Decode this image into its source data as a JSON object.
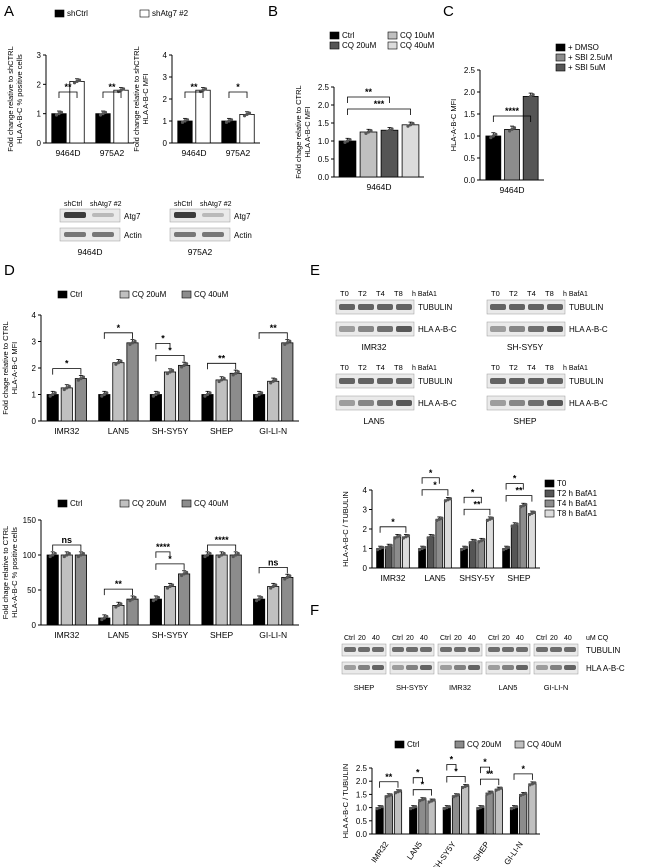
{
  "colors": {
    "black": "#000000",
    "dark": "#555555",
    "mid": "#8c8c8c",
    "light": "#c0c0c0",
    "lighter": "#dcdcdc",
    "white": "#ffffff",
    "band": "#2a2a2a"
  },
  "panel_letters": {
    "A": "A",
    "B": "B",
    "C": "C",
    "D": "D",
    "E": "E",
    "F": "F"
  },
  "chart_data": [
    {
      "id": "A1",
      "type": "bar",
      "ylabel_lines": [
        "Fold change relative to shCTRL",
        "HLA A-B-C % positive cells"
      ],
      "legend": [
        "shCtrl",
        "shAtg7 #2"
      ],
      "categories": [
        "9464D",
        "975A2"
      ],
      "ylim": [
        0,
        3
      ],
      "yticks": [
        "0",
        "1",
        "2",
        "3"
      ],
      "series": [
        {
          "name": "shCtrl",
          "values": [
            1.0,
            1.0
          ]
        },
        {
          "name": "shAtg7 #2",
          "values": [
            2.1,
            1.8
          ]
        }
      ],
      "significance": [
        {
          "label": "**",
          "cat": 0
        },
        {
          "label": "**",
          "cat": 1
        }
      ]
    },
    {
      "id": "A2",
      "type": "bar",
      "ylabel_lines": [
        "Fold change relative to shCTRL",
        "HLA A-B-C MFI"
      ],
      "categories": [
        "9464D",
        "975A2"
      ],
      "ylim": [
        0,
        4
      ],
      "yticks": [
        "0",
        "1",
        "2",
        "3",
        "4"
      ],
      "series": [
        {
          "name": "shCtrl",
          "values": [
            1.0,
            1.0
          ]
        },
        {
          "name": "shAtg7 #2",
          "values": [
            2.4,
            1.3
          ]
        }
      ],
      "significance": [
        {
          "label": "**",
          "cat": 0
        },
        {
          "label": "*",
          "cat": 1
        }
      ]
    },
    {
      "id": "B",
      "type": "bar",
      "ylabel_lines": [
        "Fold chage relative to CTRL",
        "HLA A-B-C MFI"
      ],
      "legend": [
        "Ctrl",
        "CQ 10uM",
        "CQ 20uM",
        "CQ 40uM"
      ],
      "categories": [
        "9464D"
      ],
      "ylim": [
        0,
        2.5
      ],
      "yticks": [
        "0.0",
        "0.5",
        "1.0",
        "1.5",
        "2.0",
        "2.5"
      ],
      "series": [
        {
          "name": "Ctrl",
          "values": [
            1.0
          ]
        },
        {
          "name": "CQ 10uM",
          "values": [
            1.25
          ]
        },
        {
          "name": "CQ 20uM",
          "values": [
            1.3
          ]
        },
        {
          "name": "CQ 40uM",
          "values": [
            1.45
          ]
        }
      ],
      "significance": [
        "**",
        "***"
      ]
    },
    {
      "id": "C",
      "type": "bar",
      "ylabel_lines": [
        "HLA-A-B-C MFI"
      ],
      "legend": [
        "+ DMSO",
        "+ SBI 2.5uM",
        "+ SBI 5uM"
      ],
      "categories": [
        "9464D"
      ],
      "ylim": [
        0,
        2.5
      ],
      "yticks": [
        "0.0",
        "0.5",
        "1.0",
        "1.5",
        "2.0",
        "2.5"
      ],
      "series": [
        {
          "name": "+ DMSO",
          "values": [
            1.0
          ]
        },
        {
          "name": "+ SBI 2.5uM",
          "values": [
            1.15
          ]
        },
        {
          "name": "+ SBI 5uM",
          "values": [
            1.9
          ]
        }
      ],
      "significance": [
        "****"
      ]
    },
    {
      "id": "D1",
      "type": "bar",
      "ylabel_lines": [
        "Fold chage relative to CTRL",
        "HLA-A-B-C MFI"
      ],
      "legend": [
        "Ctrl",
        "CQ 20uM",
        "CQ 40uM"
      ],
      "categories": [
        "IMR32",
        "LAN5",
        "SH-SY5Y",
        "SHEP",
        "GI-LI-N"
      ],
      "ylim": [
        0,
        4
      ],
      "yticks": [
        "0",
        "1",
        "2",
        "3",
        "4"
      ],
      "series": [
        {
          "name": "Ctrl",
          "values": [
            1,
            1,
            1,
            1,
            1
          ]
        },
        {
          "name": "CQ 20uM",
          "values": [
            1.25,
            2.2,
            1.85,
            1.55,
            1.5
          ]
        },
        {
          "name": "CQ 40uM",
          "values": [
            1.6,
            2.95,
            2.1,
            1.8,
            2.95
          ]
        }
      ],
      "significance": [
        "*",
        "*",
        "*",
        "**",
        "**",
        "*"
      ]
    },
    {
      "id": "D2",
      "type": "bar",
      "ylabel_lines": [
        "Fold chage relative to CTRL",
        "HLA-A-B-C % positive cells"
      ],
      "legend": [
        "Ctrl",
        "CQ 20uM",
        "CQ 40uM"
      ],
      "categories": [
        "IMR32",
        "LAN5",
        "SH-SY5Y",
        "SHEP",
        "GI-LI-N"
      ],
      "ylim": [
        0,
        150
      ],
      "yticks": [
        "0",
        "50",
        "100",
        "150"
      ],
      "series": [
        {
          "name": "Ctrl",
          "values": [
            100,
            10,
            37,
            100,
            37
          ]
        },
        {
          "name": "CQ 20uM",
          "values": [
            100,
            28,
            55,
            100,
            55
          ]
        },
        {
          "name": "CQ 40uM",
          "values": [
            100,
            37,
            73,
            100,
            68
          ]
        }
      ],
      "significance": [
        "ns",
        "**",
        "*",
        "****",
        "ns",
        "****"
      ]
    },
    {
      "id": "E",
      "type": "bar",
      "ylabel_lines": [
        "HLA-A-B-C / TUBULIN"
      ],
      "legend": [
        "T0",
        "T2 h BafA1",
        "T4 h BafA1",
        "T8 h BafA1"
      ],
      "categories": [
        "IMR32",
        "LAN5",
        "SHSY-5Y",
        "SHEP"
      ],
      "ylim": [
        0,
        4
      ],
      "yticks": [
        "0",
        "1",
        "2",
        "3",
        "4"
      ],
      "series": [
        {
          "name": "T0",
          "values": [
            1.0,
            1.0,
            1.0,
            1.0
          ]
        },
        {
          "name": "T2 h BafA1",
          "values": [
            1.1,
            1.6,
            1.35,
            2.2
          ]
        },
        {
          "name": "T4 h BafA1",
          "values": [
            1.6,
            2.5,
            1.4,
            3.2
          ]
        },
        {
          "name": "T8 h BafA1",
          "values": [
            1.6,
            3.5,
            2.5,
            2.8
          ]
        }
      ],
      "significance": [
        "*",
        "*",
        "**",
        "**",
        "*",
        "*",
        "*"
      ]
    },
    {
      "id": "F",
      "type": "bar",
      "ylabel_lines": [
        "HLA A-B-C / TUBULIN"
      ],
      "legend": [
        "Ctrl",
        "CQ 20uM",
        "CQ 40uM"
      ],
      "categories": [
        "IMR32",
        "LAN5",
        "SH-SY5Y",
        "SHEP",
        "GI-LI-N"
      ],
      "ylim": [
        0,
        2.5
      ],
      "yticks": [
        "0.0",
        "0.5",
        "1.0",
        "1.5",
        "2.0",
        "2.5"
      ],
      "series": [
        {
          "name": "Ctrl",
          "values": [
            1.0,
            1.0,
            1.0,
            1.0,
            1.0
          ]
        },
        {
          "name": "CQ 20uM",
          "values": [
            1.45,
            1.3,
            1.45,
            1.55,
            1.5
          ]
        },
        {
          "name": "CQ 40uM",
          "values": [
            1.6,
            1.25,
            1.8,
            1.7,
            1.9
          ]
        }
      ],
      "significance": [
        "**",
        "*",
        "*",
        "**",
        "*",
        "*",
        "*",
        "*"
      ]
    }
  ],
  "blots": {
    "A_left": {
      "lanes": [
        "shCtrl",
        "shAtg7 #2"
      ],
      "labels": [
        "Atg7",
        "Actin"
      ],
      "cell": "9464D"
    },
    "A_right": {
      "lanes": [
        "shCtrl",
        "shAtg7 #2"
      ],
      "labels": [
        "Atg7",
        "Actin"
      ],
      "cell": "975A2"
    },
    "E_times": [
      "T0",
      "T2",
      "T4",
      "T8"
    ],
    "E_unit": "h BafA1",
    "E_labels": [
      "TUBULIN",
      "HLA A-B-C"
    ],
    "E_cells": [
      "IMR32",
      "SH-SY5Y",
      "LAN5",
      "SHEP"
    ],
    "F_lanes": [
      "Ctrl",
      "20",
      "40"
    ],
    "F_unit": "uM CQ",
    "F_labels": [
      "TUBULIN",
      "HLA A-B-C"
    ],
    "F_cells": [
      "SHEP",
      "SH-SY5Y",
      "IMR32",
      "LAN5",
      "GI-LI-N"
    ]
  }
}
